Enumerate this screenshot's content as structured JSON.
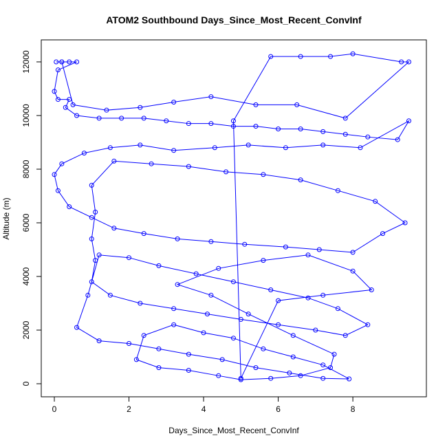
{
  "chart_data": {
    "type": "line",
    "title": "ATOM2 Southbound Days_Since_Most_Recent_ConvInf",
    "x_label": "Days_Since_Most_Recent_ConvInf",
    "y_label": "Altitude (m)",
    "color": "#0000ff",
    "markers": "circle",
    "xlim": [
      -0.35,
      9.97
    ],
    "ylim": [
      -487,
      12820
    ],
    "xticks": [
      0,
      2,
      4,
      6,
      8
    ],
    "yticks": [
      0,
      2000,
      4000,
      6000,
      8000,
      10000,
      12000
    ],
    "x": [
      0.05,
      0.2,
      0.4,
      0.6,
      0.1,
      0,
      0.1,
      0.4,
      0.3,
      0.6,
      1.2,
      1.8,
      2.4,
      3,
      3.6,
      4.2,
      4.8,
      5.4,
      6,
      6.6,
      7.2,
      7.8,
      8.4,
      9.2,
      9.5,
      8.2,
      7.2,
      6.2,
      5.2,
      4.3,
      3.2,
      2.3,
      1.5,
      0.8,
      0.2,
      0,
      0.1,
      0.4,
      1,
      1.6,
      2.4,
      3.3,
      4.2,
      5.1,
      6.2,
      7.1,
      8,
      8.8,
      9.4,
      8.6,
      7.6,
      6.6,
      5.6,
      4.6,
      3.6,
      2.6,
      1.6,
      1,
      1.1,
      1,
      1.1,
      1,
      1.5,
      2.3,
      3.2,
      4.1,
      5,
      6,
      7,
      7.8,
      8.4,
      7.6,
      6.8,
      5.8,
      4.8,
      3.8,
      2.8,
      2,
      1.2,
      0.9,
      0.6,
      1.2,
      2,
      2.8,
      3.6,
      4.5,
      5.4,
      6.3,
      7.2,
      7.9,
      7.2,
      6.4,
      5.6,
      4.8,
      4,
      3.2,
      2.4,
      2.2,
      2.8,
      3.6,
      4.4,
      5,
      5.8,
      6.6,
      7.4,
      7.5,
      6.4,
      5.2,
      4.2,
      3.3,
      4.4,
      5.6,
      6.8,
      8,
      8.5,
      7.2,
      6,
      5,
      4.8,
      5.8,
      6.6,
      7.4,
      8,
      9.3,
      9.5,
      7.8,
      6.5,
      5.4,
      4.2,
      3.2,
      2.3,
      1.4,
      0.5,
      0.2
    ],
    "y": [
      12000,
      12000,
      12000,
      12000,
      11700,
      10900,
      10600,
      10600,
      10300,
      10000,
      9900,
      9900,
      9900,
      9800,
      9700,
      9700,
      9600,
      9600,
      9500,
      9500,
      9400,
      9300,
      9200,
      9100,
      9800,
      8800,
      8900,
      8800,
      8900,
      8800,
      8700,
      8900,
      8800,
      8600,
      8200,
      7800,
      7200,
      6600,
      6200,
      5800,
      5600,
      5400,
      5300,
      5200,
      5100,
      5000,
      4900,
      5600,
      6000,
      6800,
      7200,
      7600,
      7800,
      7900,
      8100,
      8200,
      8300,
      7400,
      6400,
      5400,
      4600,
      3800,
      3300,
      3000,
      2800,
      2600,
      2400,
      2200,
      2000,
      1800,
      2200,
      2800,
      3200,
      3500,
      3800,
      4100,
      4400,
      4700,
      4800,
      3300,
      2100,
      1600,
      1500,
      1300,
      1100,
      900,
      600,
      400,
      200,
      180,
      700,
      1000,
      1300,
      1700,
      1900,
      2200,
      1800,
      900,
      600,
      500,
      300,
      150,
      200,
      300,
      600,
      1100,
      1800,
      2600,
      3300,
      3700,
      4300,
      4600,
      4800,
      4200,
      3500,
      3300,
      3100,
      200,
      9800,
      12200,
      12200,
      12200,
      12300,
      12000,
      12000,
      9900,
      10400,
      10400,
      10700,
      10500,
      10300,
      10200,
      10400,
      12000
    ]
  }
}
